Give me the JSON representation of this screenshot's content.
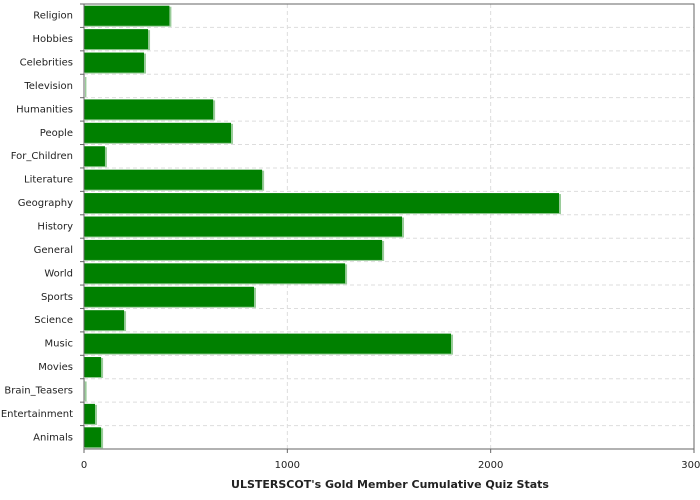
{
  "chart_data": {
    "type": "bar",
    "orientation": "horizontal",
    "title": "ULSTERSCOT's Gold Member Cumulative Quiz Stats",
    "categories": [
      "Religion",
      "Hobbies",
      "Celebrities",
      "Television",
      "Humanities",
      "People",
      "For_Children",
      "Literature",
      "Geography",
      "History",
      "General",
      "World",
      "Sports",
      "Science",
      "Music",
      "Movies",
      "Brain_Teasers",
      "Entertainment",
      "Animals"
    ],
    "values": [
      420,
      315,
      295,
      2,
      635,
      723,
      103,
      876,
      2336,
      1564,
      1466,
      1284,
      836,
      197,
      1805,
      84,
      3,
      54,
      84
    ],
    "color": "#008000",
    "xlim": [
      0,
      3000
    ],
    "xticks": [
      0,
      1000,
      2000,
      3000
    ],
    "grid": true
  }
}
